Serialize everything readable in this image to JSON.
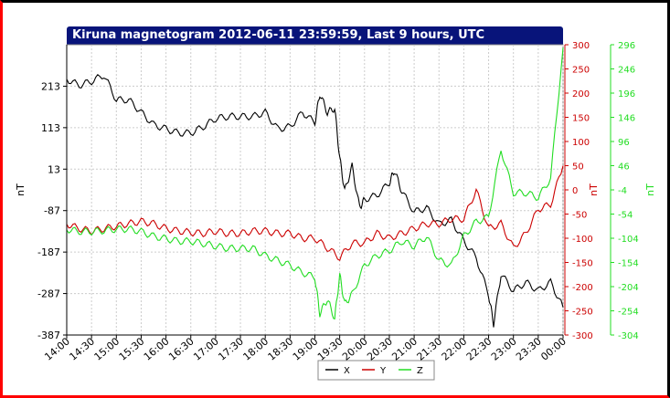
{
  "colors": {
    "x": "#000000",
    "y": "#cc0000",
    "z": "#22dd22",
    "title_bg": "#08147a"
  },
  "chart_data": {
    "type": "line",
    "title": "Kiruna magnetogram 2012-06-11 23:59:59, Last 9 hours, UTC",
    "x_ticks": [
      "14:00",
      "14:30",
      "15:00",
      "15:30",
      "16:00",
      "16:30",
      "17:00",
      "17:30",
      "18:00",
      "18:30",
      "19:00",
      "19:30",
      "20:00",
      "20:30",
      "21:00",
      "21:30",
      "22:00",
      "22:30",
      "23:00",
      "23:30",
      "00:00"
    ],
    "xlim_hours": [
      14,
      24
    ],
    "y_axes": [
      {
        "id": "left",
        "label": "nT",
        "ylim": [
          -387,
          313
        ],
        "ticks": [
          213,
          113,
          13,
          -87,
          -187,
          -287,
          -387
        ],
        "color": "#000000"
      },
      {
        "id": "right1",
        "label": "nT",
        "ylim": [
          -300,
          300
        ],
        "ticks": [
          300,
          250,
          200,
          150,
          100,
          50,
          0,
          -50,
          -100,
          -150,
          -200,
          -250,
          -300
        ],
        "color": "#cc0000"
      },
      {
        "id": "right2",
        "label": "nT",
        "ylim": [
          -304,
          296
        ],
        "ticks": [
          296,
          246,
          196,
          146,
          96,
          46,
          -4,
          -54,
          -104,
          -154,
          -204,
          -254,
          -304
        ],
        "color": "#22dd22"
      }
    ],
    "series": [
      {
        "name": "X",
        "axis": "left",
        "color": "#000000",
        "x": [
          14.0,
          14.25,
          14.5,
          14.75,
          15.0,
          15.25,
          15.5,
          15.75,
          16.0,
          16.25,
          16.5,
          16.75,
          17.0,
          17.25,
          17.5,
          17.75,
          18.0,
          18.25,
          18.5,
          18.75,
          19.0,
          19.1,
          19.25,
          19.4,
          19.5,
          19.6,
          19.75,
          19.9,
          20.0,
          20.25,
          20.5,
          20.6,
          20.75,
          21.0,
          21.25,
          21.5,
          21.75,
          22.0,
          22.25,
          22.5,
          22.6,
          22.75,
          23.0,
          23.25,
          23.5,
          23.75,
          24.0
        ],
        "y": [
          230,
          215,
          225,
          240,
          180,
          180,
          150,
          120,
          110,
          100,
          100,
          115,
          135,
          140,
          140,
          140,
          150,
          110,
          115,
          150,
          125,
          195,
          150,
          160,
          40,
          -40,
          20,
          -80,
          -60,
          -50,
          -20,
          10,
          -40,
          -90,
          -80,
          -120,
          -110,
          -160,
          -200,
          -290,
          -360,
          -240,
          -280,
          -260,
          -280,
          -260,
          -320
        ]
      },
      {
        "name": "Y",
        "axis": "right1",
        "color": "#cc0000",
        "x": [
          14.0,
          14.25,
          14.5,
          14.75,
          15.0,
          15.25,
          15.5,
          15.75,
          16.0,
          16.25,
          16.5,
          16.75,
          17.0,
          17.25,
          17.5,
          17.75,
          18.0,
          18.25,
          18.5,
          18.75,
          19.0,
          19.25,
          19.5,
          19.75,
          20.0,
          20.25,
          20.5,
          20.75,
          21.0,
          21.25,
          21.5,
          21.75,
          22.0,
          22.25,
          22.5,
          22.75,
          23.0,
          23.25,
          23.5,
          23.75,
          24.0
        ],
        "y": [
          -70,
          -80,
          -85,
          -80,
          -75,
          -70,
          -65,
          -70,
          -80,
          -85,
          -88,
          -90,
          -85,
          -90,
          -90,
          -85,
          -85,
          -90,
          -90,
          -100,
          -100,
          -120,
          -140,
          -110,
          -110,
          -90,
          -100,
          -90,
          -80,
          -70,
          -70,
          -60,
          -60,
          0,
          -80,
          -70,
          -120,
          -90,
          -40,
          -30,
          50
        ]
      },
      {
        "name": "Z",
        "axis": "right2",
        "color": "#22dd22",
        "x": [
          14.0,
          14.25,
          14.5,
          14.75,
          15.0,
          15.25,
          15.5,
          15.75,
          16.0,
          16.25,
          16.5,
          16.75,
          17.0,
          17.25,
          17.5,
          17.75,
          18.0,
          18.25,
          18.5,
          18.75,
          19.0,
          19.1,
          19.25,
          19.4,
          19.5,
          19.6,
          19.75,
          20.0,
          20.25,
          20.5,
          20.75,
          21.0,
          21.25,
          21.5,
          21.75,
          22.0,
          22.25,
          22.5,
          22.75,
          23.0,
          23.25,
          23.5,
          23.75,
          24.0
        ],
        "y": [
          -85,
          -90,
          -90,
          -88,
          -85,
          -85,
          -90,
          -100,
          -105,
          -110,
          -110,
          -115,
          -120,
          -125,
          -125,
          -125,
          -140,
          -150,
          -160,
          -175,
          -185,
          -260,
          -230,
          -270,
          -180,
          -240,
          -220,
          -160,
          -140,
          -130,
          -110,
          -120,
          -100,
          -150,
          -160,
          -100,
          -70,
          -60,
          80,
          -10,
          -10,
          -20,
          20,
          290
        ]
      }
    ],
    "legend": {
      "placement": "bottom-center",
      "items": [
        "X",
        "Y",
        "Z"
      ]
    },
    "grid": true
  }
}
